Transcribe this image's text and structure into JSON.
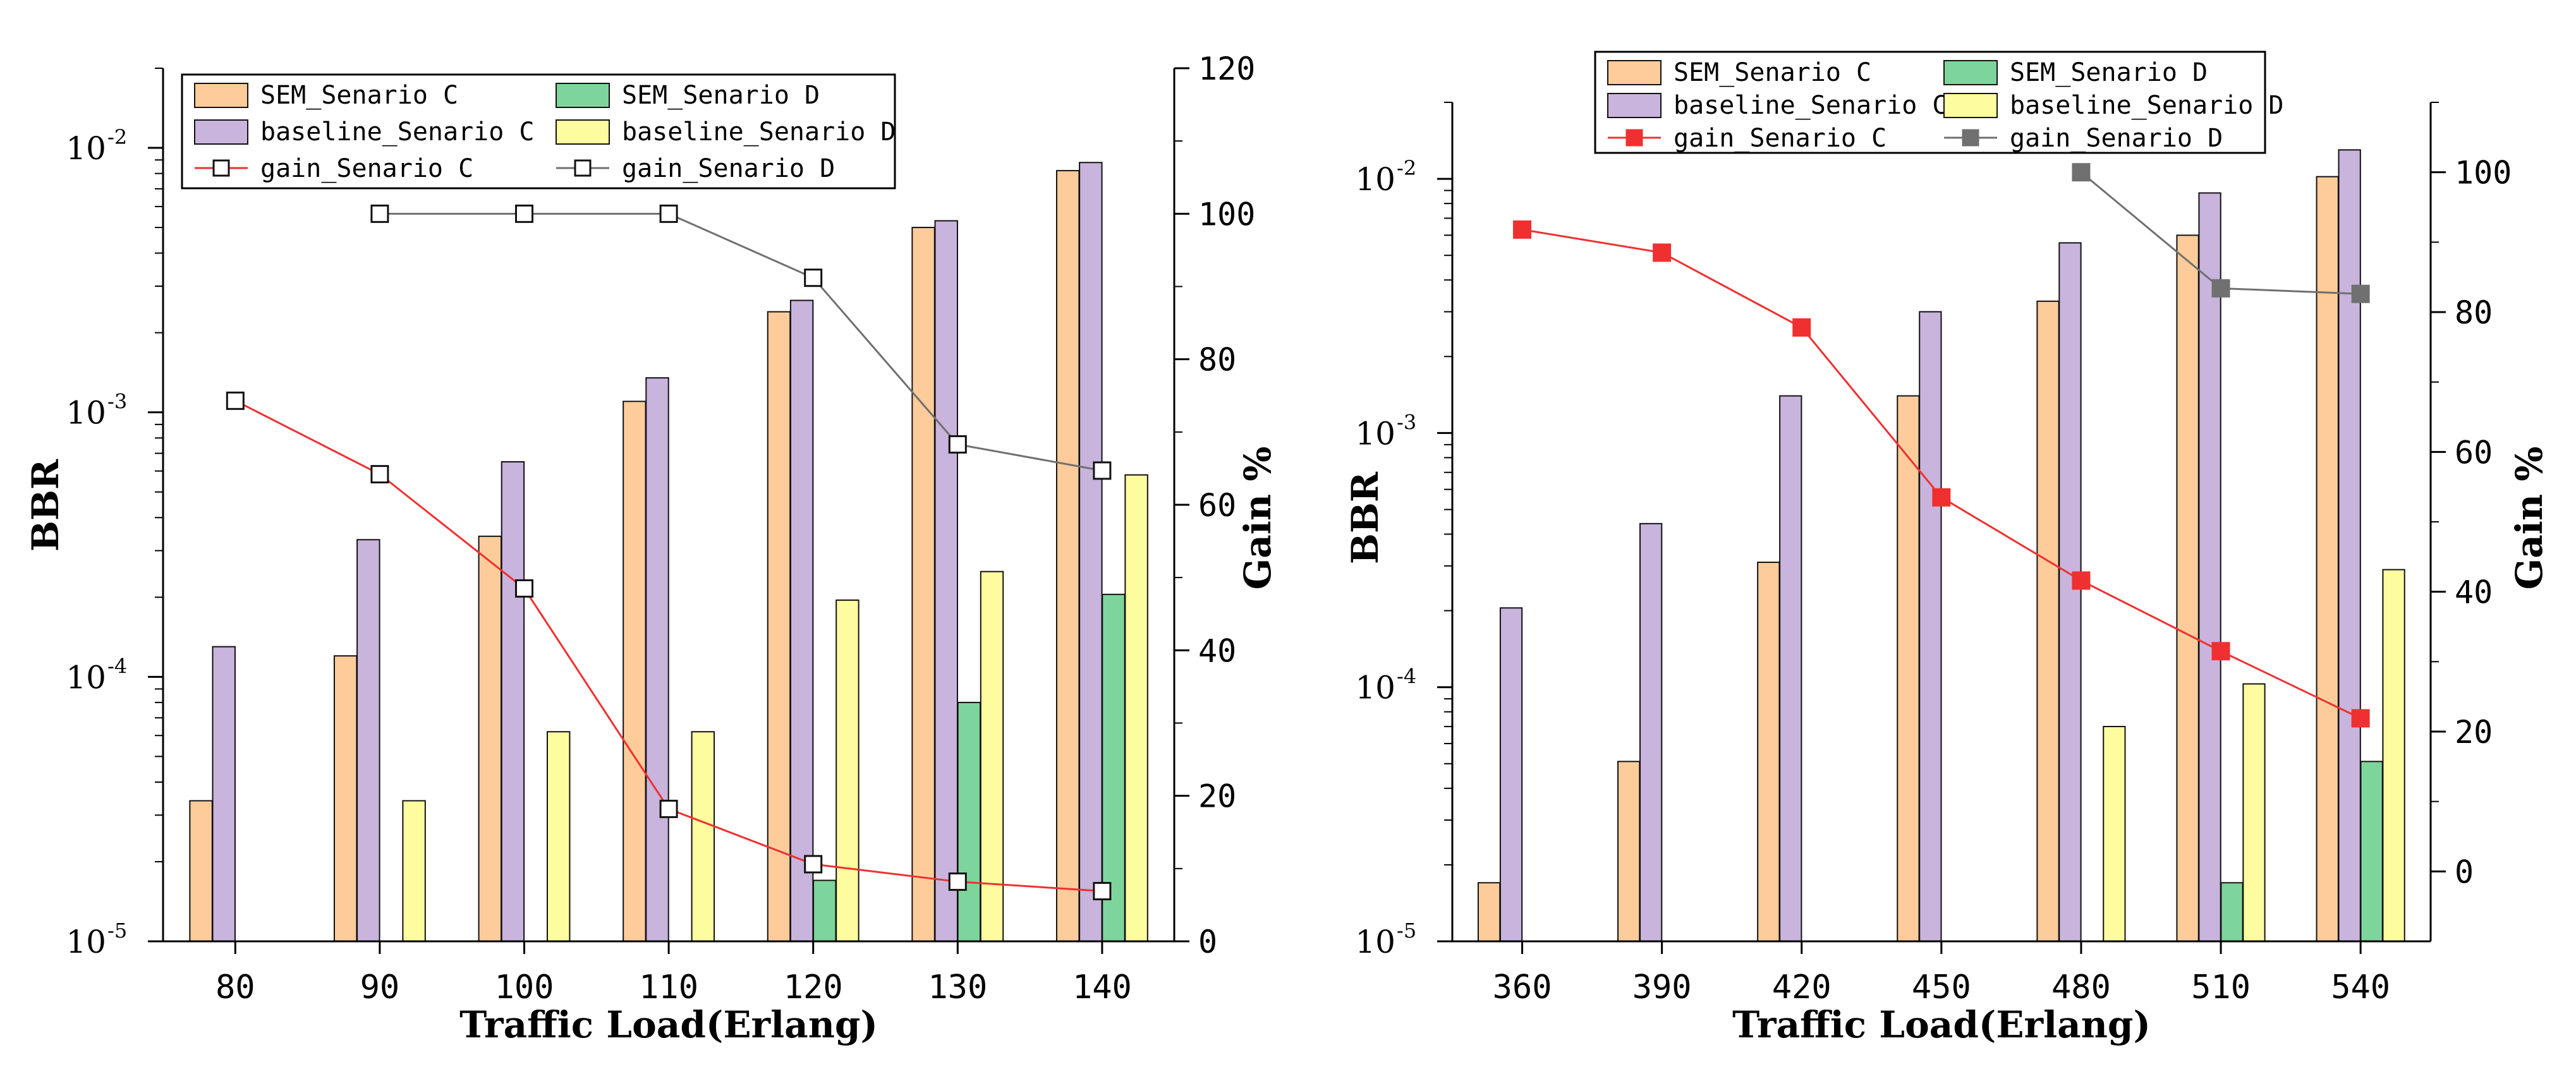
{
  "chart_data": [
    {
      "type": "bar",
      "title": "",
      "xlabel": "Traffic Load(Erlang)",
      "ylabel": "BBR",
      "y2label": "Gain %",
      "categories": [
        "80",
        "90",
        "100",
        "110",
        "120",
        "130",
        "140"
      ],
      "yscale": "log",
      "ylim": [
        1e-05,
        0.02
      ],
      "y_ticks": [
        {
          "label": "10",
          "exp": "-5"
        },
        {
          "label": "10",
          "exp": "-4"
        },
        {
          "label": "10",
          "exp": "-3"
        },
        {
          "label": "10",
          "exp": "-2"
        }
      ],
      "y2lim": [
        0,
        120
      ],
      "y2_ticks": [
        "0",
        "20",
        "40",
        "60",
        "80",
        "100",
        "120"
      ],
      "legend_position": "top",
      "series": [
        {
          "name": "SEM_Senario C",
          "kind": "bar",
          "color": "#FECC9A",
          "values": [
            3.4e-05,
            0.00012,
            0.00034,
            0.0011,
            0.0024,
            0.005,
            0.0082
          ]
        },
        {
          "name": "baseline_Senario C",
          "kind": "bar",
          "color": "#C8B4DC",
          "values": [
            0.00013,
            0.00033,
            0.00065,
            0.00135,
            0.00265,
            0.0053,
            0.0088
          ]
        },
        {
          "name": "SEM_Senario D",
          "kind": "bar",
          "color": "#7ED59B",
          "values": [
            null,
            null,
            null,
            null,
            1.7e-05,
            8e-05,
            0.000205
          ]
        },
        {
          "name": "baseline_Senario D",
          "kind": "bar",
          "color": "#FDFDA0",
          "values": [
            null,
            3.4e-05,
            6.2e-05,
            6.2e-05,
            0.000195,
            0.00025,
            0.00058
          ]
        },
        {
          "name": "gain_Senario C",
          "kind": "line",
          "axis": "right",
          "color": "#F03030",
          "marker": "hollow-square",
          "values": [
            74.3,
            64.2,
            48.5,
            18.2,
            10.6,
            8.2,
            6.9
          ]
        },
        {
          "name": "gain_Senario D",
          "kind": "line",
          "axis": "right",
          "color": "#707070",
          "marker": "hollow-square",
          "values": [
            null,
            100,
            100,
            100,
            91.2,
            68.3,
            64.7
          ]
        }
      ]
    },
    {
      "type": "bar",
      "title": "",
      "xlabel": "Traffic Load(Erlang)",
      "ylabel": "BBR",
      "y2label": "Gain %",
      "categories": [
        "360",
        "390",
        "420",
        "450",
        "480",
        "510",
        "540"
      ],
      "yscale": "log",
      "ylim": [
        1e-05,
        0.02
      ],
      "y_ticks": [
        {
          "label": "10",
          "exp": "-5"
        },
        {
          "label": "10",
          "exp": "-4"
        },
        {
          "label": "10",
          "exp": "-3"
        },
        {
          "label": "10",
          "exp": "-2"
        }
      ],
      "y2lim": [
        -10,
        110
      ],
      "y2_ticks": [
        "0",
        "20",
        "40",
        "60",
        "80",
        "100"
      ],
      "legend_position": "top",
      "series": [
        {
          "name": "SEM_Senario C",
          "kind": "bar",
          "color": "#FECC9A",
          "values": [
            1.7e-05,
            5.1e-05,
            0.00031,
            0.0014,
            0.0033,
            0.006,
            0.0102
          ]
        },
        {
          "name": "baseline_Senario C",
          "kind": "bar",
          "color": "#C8B4DC",
          "values": [
            0.000205,
            0.00044,
            0.0014,
            0.003,
            0.0056,
            0.0088,
            0.013
          ]
        },
        {
          "name": "gain_Senario C",
          "kind": "line",
          "axis": "right",
          "color": "#F03030",
          "marker": "filled-square",
          "values": [
            91.8,
            88.5,
            77.8,
            53.5,
            41.6,
            31.5,
            21.9
          ]
        },
        {
          "name": "SEM_Senario D",
          "kind": "bar",
          "color": "#7ED59B",
          "values": [
            null,
            null,
            null,
            null,
            null,
            1.7e-05,
            5.1e-05
          ]
        },
        {
          "name": "baseline_Senario D",
          "kind": "bar",
          "color": "#FDFDA0",
          "values": [
            null,
            null,
            null,
            null,
            7e-05,
            0.000103,
            0.00029
          ]
        },
        {
          "name": "gain_Senario D",
          "kind": "line",
          "axis": "right",
          "color": "#707070",
          "marker": "filled-square",
          "values": [
            null,
            null,
            null,
            null,
            100,
            83.4,
            82.6
          ]
        }
      ]
    }
  ]
}
